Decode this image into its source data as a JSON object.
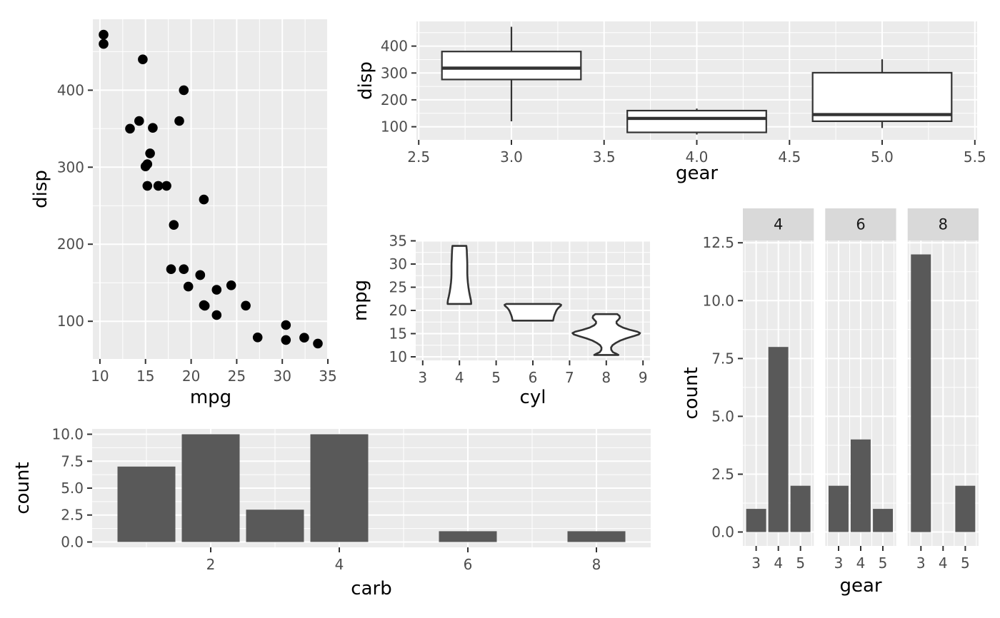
{
  "figure_background": "#FFFFFF",
  "colors": {
    "panel_bg": "#EBEBEB",
    "grid": "#FFFFFF",
    "point": "#000000",
    "bar_fill": "#595959",
    "box_stroke": "#333333",
    "box_fill": "#FFFFFF",
    "violin_stroke": "#333333",
    "violin_fill": "#FFFFFF",
    "tick_label": "#4D4D4D",
    "tick_mark": "#333333",
    "axis_title": "#000000",
    "strip_bg": "#D9D9D9",
    "strip_text": "#1A1A1A"
  },
  "chart_data": [
    {
      "id": "scatter-mpg-disp",
      "type": "scatter",
      "x_title": "mpg",
      "y_title": "disp",
      "xlim": [
        9.225,
        35.075
      ],
      "ylim": [
        51.05,
        492.05
      ],
      "grid": "on",
      "x_ticks": {
        "values": [
          10,
          15,
          20,
          25,
          30,
          35
        ],
        "labels": [
          "10",
          "15",
          "20",
          "25",
          "30",
          "35"
        ]
      },
      "y_ticks": {
        "values": [
          100,
          200,
          300,
          400
        ],
        "labels": [
          "100",
          "200",
          "300",
          "400"
        ]
      },
      "points": [
        [
          21.0,
          160.0
        ],
        [
          21.0,
          160.0
        ],
        [
          22.8,
          108.0
        ],
        [
          21.4,
          258.0
        ],
        [
          18.7,
          360.0
        ],
        [
          18.1,
          225.0
        ],
        [
          14.3,
          360.0
        ],
        [
          24.4,
          146.7
        ],
        [
          22.8,
          140.8
        ],
        [
          19.2,
          167.6
        ],
        [
          17.8,
          167.6
        ],
        [
          16.4,
          275.8
        ],
        [
          17.3,
          275.8
        ],
        [
          15.2,
          275.8
        ],
        [
          10.4,
          472.0
        ],
        [
          10.4,
          460.0
        ],
        [
          14.7,
          440.0
        ],
        [
          32.4,
          78.7
        ],
        [
          30.4,
          75.7
        ],
        [
          33.9,
          71.1
        ],
        [
          21.5,
          120.1
        ],
        [
          15.5,
          318.0
        ],
        [
          15.2,
          304.0
        ],
        [
          13.3,
          350.0
        ],
        [
          19.2,
          400.0
        ],
        [
          27.3,
          79.0
        ],
        [
          26.0,
          120.3
        ],
        [
          30.4,
          95.1
        ],
        [
          15.8,
          351.0
        ],
        [
          19.7,
          145.0
        ],
        [
          15.0,
          301.0
        ],
        [
          21.4,
          121.0
        ]
      ]
    },
    {
      "id": "box-gear-disp",
      "type": "box",
      "x_title": "gear",
      "y_title": "disp",
      "xlim": [
        2.4875,
        5.5125
      ],
      "ylim": [
        51.05,
        492.05
      ],
      "grid": "on",
      "x_ticks": {
        "values": [
          2.5,
          3.0,
          3.5,
          4.0,
          4.5,
          5.0,
          5.5
        ],
        "labels": [
          "2.5",
          "3.0",
          "3.5",
          "4.0",
          "4.5",
          "5.0",
          "5.5"
        ]
      },
      "y_ticks": {
        "values": [
          100,
          200,
          300,
          400
        ],
        "labels": [
          "100",
          "200",
          "300",
          "400"
        ]
      },
      "box_width": 0.75,
      "boxes": [
        {
          "x": 3,
          "ymin": 120.1,
          "lower": 275.8,
          "middle": 318.0,
          "upper": 380.0,
          "ymax": 472.0
        },
        {
          "x": 4,
          "ymin": 71.1,
          "lower": 78.9,
          "middle": 130.9,
          "upper": 160.0,
          "ymax": 167.6
        },
        {
          "x": 5,
          "ymin": 95.1,
          "lower": 120.3,
          "middle": 145.0,
          "upper": 301.0,
          "ymax": 351.0
        }
      ]
    },
    {
      "id": "violin-cyl-mpg",
      "type": "violin",
      "x_title": "cyl",
      "y_title": "mpg",
      "xlim": [
        2.81,
        9.19
      ],
      "ylim": [
        9.225,
        35.075
      ],
      "grid": "on",
      "x_ticks": {
        "values": [
          3,
          4,
          5,
          6,
          7,
          8,
          9
        ],
        "labels": [
          "3",
          "4",
          "5",
          "6",
          "7",
          "8",
          "9"
        ]
      },
      "y_ticks": {
        "values": [
          10,
          15,
          20,
          25,
          30,
          35
        ],
        "labels": [
          "10",
          "15",
          "20",
          "25",
          "30",
          "35"
        ]
      },
      "violins": [
        {
          "x": 4,
          "mpg_range": [
            21.4,
            33.9
          ],
          "outline": [
            [
              33.9,
              0.19
            ],
            [
              33.0,
              0.2
            ],
            [
              32.0,
              0.205
            ],
            [
              31.0,
              0.21
            ],
            [
              30.0,
              0.215
            ],
            [
              29.0,
              0.215
            ],
            [
              28.0,
              0.215
            ],
            [
              27.0,
              0.22
            ],
            [
              26.0,
              0.23
            ],
            [
              25.0,
              0.245
            ],
            [
              24.0,
              0.265
            ],
            [
              23.0,
              0.29
            ],
            [
              22.3,
              0.31
            ],
            [
              21.7,
              0.32
            ],
            [
              21.4,
              0.32
            ]
          ]
        },
        {
          "x": 6,
          "mpg_range": [
            17.8,
            21.4
          ],
          "outline": [
            [
              21.4,
              0.72
            ],
            [
              21.2,
              0.77
            ],
            [
              21.0,
              0.76
            ],
            [
              20.6,
              0.7
            ],
            [
              20.2,
              0.66
            ],
            [
              19.8,
              0.63
            ],
            [
              19.4,
              0.61
            ],
            [
              19.0,
              0.59
            ],
            [
              18.5,
              0.57
            ],
            [
              18.1,
              0.56
            ],
            [
              17.8,
              0.55
            ]
          ]
        },
        {
          "x": 8,
          "mpg_range": [
            10.4,
            19.2
          ],
          "outline": [
            [
              19.2,
              0.3
            ],
            [
              18.8,
              0.36
            ],
            [
              18.4,
              0.37
            ],
            [
              18.0,
              0.33
            ],
            [
              17.6,
              0.28
            ],
            [
              17.2,
              0.28
            ],
            [
              16.8,
              0.33
            ],
            [
              16.3,
              0.45
            ],
            [
              15.8,
              0.65
            ],
            [
              15.4,
              0.85
            ],
            [
              15.1,
              0.92
            ],
            [
              14.8,
              0.88
            ],
            [
              14.4,
              0.72
            ],
            [
              14.0,
              0.55
            ],
            [
              13.5,
              0.38
            ],
            [
              13.0,
              0.26
            ],
            [
              12.5,
              0.17
            ],
            [
              12.0,
              0.13
            ],
            [
              11.5,
              0.135
            ],
            [
              11.0,
              0.18
            ],
            [
              10.7,
              0.26
            ],
            [
              10.4,
              0.33
            ]
          ]
        }
      ]
    },
    {
      "id": "bar-carb-count",
      "type": "bar",
      "x_title": "carb",
      "y_title": "count",
      "xlim": [
        0.155,
        8.845
      ],
      "ylim": [
        -0.5,
        10.5
      ],
      "grid": "on",
      "x_ticks": {
        "values": [
          2,
          4,
          6,
          8
        ],
        "labels": [
          "2",
          "4",
          "6",
          "8"
        ]
      },
      "y_ticks": {
        "values": [
          0,
          2.5,
          5,
          7.5,
          10
        ],
        "labels": [
          "0.0",
          "2.5",
          "5.0",
          "7.5",
          "10.0"
        ]
      },
      "bar_width": 0.9,
      "bars": [
        {
          "x": 1,
          "count": 7
        },
        {
          "x": 2,
          "count": 10
        },
        {
          "x": 3,
          "count": 3
        },
        {
          "x": 4,
          "count": 10
        },
        {
          "x": 6,
          "count": 1
        },
        {
          "x": 8,
          "count": 1
        }
      ]
    },
    {
      "id": "facet-gear-count",
      "type": "facet_bar",
      "x_title": "gear",
      "y_title": "count",
      "facet_variable": "cyl",
      "xlim": [
        2.4,
        5.6
      ],
      "ylim": [
        -0.6,
        12.6
      ],
      "grid": "on",
      "x_ticks": {
        "values": [
          3,
          4,
          5
        ],
        "labels": [
          "3",
          "4",
          "5"
        ]
      },
      "y_ticks": {
        "values": [
          0,
          2.5,
          5,
          7.5,
          10,
          12.5
        ],
        "labels": [
          "0.0",
          "2.5",
          "5.0",
          "7.5",
          "10.0",
          "12.5"
        ]
      },
      "bar_width": 0.9,
      "facets": [
        {
          "label": "4",
          "bars": [
            {
              "x": 3,
              "count": 1
            },
            {
              "x": 4,
              "count": 8
            },
            {
              "x": 5,
              "count": 2
            }
          ]
        },
        {
          "label": "6",
          "bars": [
            {
              "x": 3,
              "count": 2
            },
            {
              "x": 4,
              "count": 4
            },
            {
              "x": 5,
              "count": 1
            }
          ]
        },
        {
          "label": "8",
          "bars": [
            {
              "x": 3,
              "count": 12
            },
            {
              "x": 5,
              "count": 2
            }
          ]
        }
      ]
    }
  ]
}
